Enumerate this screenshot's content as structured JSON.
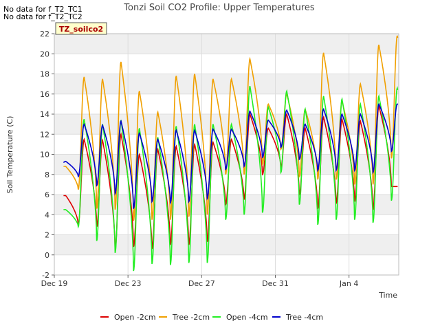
{
  "notes": [
    "No data for f_T2_TC1",
    "No data for f_T2_TC2"
  ],
  "badge": "TZ_soilco2",
  "chart_data": {
    "type": "line",
    "title": "Tonzi Soil CO2 Profile: Upper Temperatures",
    "xlabel": "Time",
    "ylabel": "Soil Temperature (C)",
    "xlim": [
      0,
      18.7
    ],
    "ylim": [
      -2,
      22
    ],
    "yticks": [
      -2,
      0,
      2,
      4,
      6,
      8,
      10,
      12,
      14,
      16,
      18,
      20,
      22
    ],
    "xticks": [
      {
        "label": "Dec 19",
        "x": 0
      },
      {
        "label": "Dec 23",
        "x": 4
      },
      {
        "label": "Dec 27",
        "x": 8
      },
      {
        "label": "Dec 31",
        "x": 12
      },
      {
        "label": "Jan 4",
        "x": 16
      }
    ],
    "grid": true,
    "legend_placement": "bottom",
    "x_units": "days since Dec 19",
    "series": [
      {
        "name": "Open -2cm",
        "color": "#dd0000",
        "days": [
          {
            "min": 5.9,
            "max": 5.9
          },
          {
            "min": 3.0,
            "max": 11.5
          },
          {
            "min": 2.8,
            "max": 11.4
          },
          {
            "min": 0.5,
            "max": 12.0
          },
          {
            "min": 0.8,
            "max": 10.0
          },
          {
            "min": 0.6,
            "max": 10.5
          },
          {
            "min": 1.0,
            "max": 10.8
          },
          {
            "min": 1.0,
            "max": 11.0
          },
          {
            "min": 1.3,
            "max": 11.2
          },
          {
            "min": 5.0,
            "max": 11.5
          },
          {
            "min": 5.5,
            "max": 14.0
          },
          {
            "min": 8.0,
            "max": 12.6
          },
          {
            "min": 8.7,
            "max": 14.0
          },
          {
            "min": 6.0,
            "max": 12.6
          },
          {
            "min": 4.6,
            "max": 13.7
          },
          {
            "min": 5.1,
            "max": 13.5
          },
          {
            "min": 5.3,
            "max": 13.3
          },
          {
            "min": 4.5,
            "max": 14.8
          },
          {
            "min": 6.8,
            "max": 6.8
          }
        ]
      },
      {
        "name": "Tree -2cm",
        "color": "#f0a000",
        "days": [
          {
            "min": 8.8,
            "max": 8.8
          },
          {
            "min": 6.5,
            "max": 17.7
          },
          {
            "min": 4.6,
            "max": 17.5
          },
          {
            "min": 4.5,
            "max": 19.2
          },
          {
            "min": 3.4,
            "max": 16.3
          },
          {
            "min": 3.5,
            "max": 14.2
          },
          {
            "min": 3.5,
            "max": 17.8
          },
          {
            "min": 3.8,
            "max": 18.0
          },
          {
            "min": 4.0,
            "max": 17.5
          },
          {
            "min": 8.0,
            "max": 17.5
          },
          {
            "min": 8.0,
            "max": 19.5
          },
          {
            "min": 9.0,
            "max": 15.0
          },
          {
            "min": 10.5,
            "max": 16.0
          },
          {
            "min": 7.8,
            "max": 14.5
          },
          {
            "min": 7.5,
            "max": 20.1
          },
          {
            "min": 7.5,
            "max": 15.3
          },
          {
            "min": 7.0,
            "max": 17.0
          },
          {
            "min": 7.0,
            "max": 20.9
          },
          {
            "min": 9.6,
            "max": 21.8
          }
        ]
      },
      {
        "name": "Open -4cm",
        "color": "#22ee22",
        "days": [
          {
            "min": 4.5,
            "max": 4.5
          },
          {
            "min": 2.8,
            "max": 13.5
          },
          {
            "min": 1.4,
            "max": 13.0
          },
          {
            "min": 0.2,
            "max": 13.4
          },
          {
            "min": -1.6,
            "max": 12.6
          },
          {
            "min": -0.9,
            "max": 11.7
          },
          {
            "min": -1.0,
            "max": 12.8
          },
          {
            "min": -0.8,
            "max": 13.0
          },
          {
            "min": -0.8,
            "max": 13.0
          },
          {
            "min": 3.5,
            "max": 13.0
          },
          {
            "min": 4.0,
            "max": 16.8
          },
          {
            "min": 4.2,
            "max": 14.7
          },
          {
            "min": 8.2,
            "max": 16.3
          },
          {
            "min": 5.0,
            "max": 14.5
          },
          {
            "min": 3.0,
            "max": 15.8
          },
          {
            "min": 3.5,
            "max": 15.5
          },
          {
            "min": 3.5,
            "max": 15.0
          },
          {
            "min": 3.2,
            "max": 15.8
          },
          {
            "min": 5.4,
            "max": 16.6
          }
        ]
      },
      {
        "name": "Tree -4cm",
        "color": "#0000cc",
        "days": [
          {
            "min": 8.9,
            "max": 9.3
          },
          {
            "min": 7.8,
            "max": 13.0
          },
          {
            "min": 6.9,
            "max": 12.9
          },
          {
            "min": 6.1,
            "max": 13.3
          },
          {
            "min": 4.6,
            "max": 12.1
          },
          {
            "min": 5.3,
            "max": 11.5
          },
          {
            "min": 5.2,
            "max": 12.4
          },
          {
            "min": 5.3,
            "max": 12.4
          },
          {
            "min": 5.6,
            "max": 12.5
          },
          {
            "min": 8.5,
            "max": 12.5
          },
          {
            "min": 8.8,
            "max": 14.3
          },
          {
            "min": 9.7,
            "max": 13.4
          },
          {
            "min": 10.7,
            "max": 14.4
          },
          {
            "min": 9.5,
            "max": 13.0
          },
          {
            "min": 8.4,
            "max": 14.5
          },
          {
            "min": 8.4,
            "max": 14.0
          },
          {
            "min": 8.4,
            "max": 14.0
          },
          {
            "min": 8.2,
            "max": 15.0
          },
          {
            "min": 10.3,
            "max": 15.0
          }
        ]
      }
    ]
  }
}
